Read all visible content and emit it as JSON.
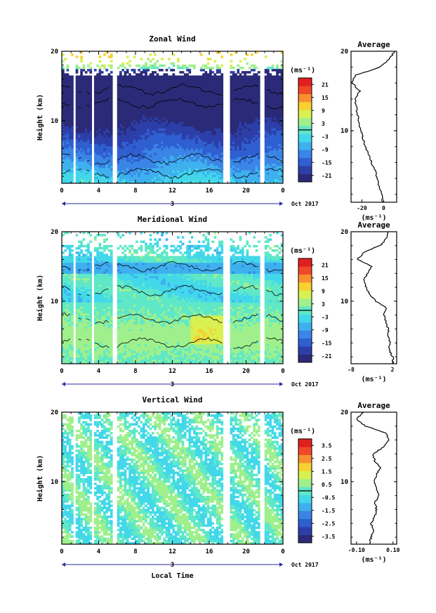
{
  "figure": {
    "xlabel": "Local Time",
    "date_label": "Oct 2017",
    "day_label": "3"
  },
  "colors": {
    "scale": [
      "#2a2a78",
      "#2c3fa8",
      "#2f5fd0",
      "#3a85e6",
      "#3fb0ee",
      "#42d8ea",
      "#5fe8c8",
      "#9ff08c",
      "#d8f050",
      "#f8d030",
      "#f89030",
      "#f04828",
      "#e02020"
    ]
  },
  "chart_data": [
    {
      "type": "heatmap",
      "title": "Zonal Wind",
      "ylabel": "Height (km)",
      "xlim": [
        0,
        24
      ],
      "ylim": [
        1,
        20
      ],
      "xticks": [
        "0",
        "4",
        "8",
        "12",
        "16",
        "20",
        "0"
      ],
      "yticks": [
        "10",
        "20"
      ],
      "colorbar": {
        "unit": "(ms⁻¹)",
        "ticks": [
          "21",
          "15",
          "9",
          "3",
          "-3",
          "-9",
          "-15",
          "-21"
        ],
        "range": [
          -24,
          24
        ]
      },
      "profile": {
        "title": "Average",
        "xlabel": "(ms⁻¹)",
        "xticks": [
          "-20",
          "0"
        ],
        "xlim": [
          -30,
          12
        ],
        "yticks": [
          "10",
          "20"
        ],
        "heights": [
          1,
          2,
          3,
          4,
          5,
          6,
          7,
          8,
          9,
          10,
          11,
          12,
          13,
          14,
          15,
          16,
          17,
          18,
          19,
          20
        ],
        "values": [
          -1,
          -2,
          -4,
          -6,
          -8,
          -11,
          -14,
          -17,
          -19,
          -21,
          -23,
          -24,
          -25,
          -27,
          -22,
          -29,
          -26,
          -3,
          5,
          10
        ]
      }
    },
    {
      "type": "heatmap",
      "title": "Meridional Wind",
      "ylabel": "Height (km)",
      "xlim": [
        0,
        24
      ],
      "ylim": [
        1,
        20
      ],
      "xticks": [
        "0",
        "4",
        "8",
        "12",
        "16",
        "20",
        "0"
      ],
      "yticks": [
        "10",
        "20"
      ],
      "colorbar": {
        "unit": "(ms⁻¹)",
        "ticks": [
          "21",
          "15",
          "9",
          "3",
          "-3",
          "-9",
          "-15",
          "-21"
        ],
        "range": [
          -24,
          24
        ]
      },
      "profile": {
        "title": "Average",
        "xlabel": "(ms⁻¹)",
        "xticks": [
          "-8",
          "2"
        ],
        "xlim": [
          -8,
          3
        ],
        "yticks": [
          "10",
          "20"
        ],
        "heights": [
          1,
          2,
          3,
          4,
          5,
          6,
          7,
          8,
          9,
          10,
          11,
          12,
          13,
          14,
          15,
          16,
          17,
          18,
          19,
          20
        ],
        "values": [
          2.2,
          2.0,
          1.2,
          1.5,
          0.8,
          1.0,
          0.4,
          0.0,
          0.5,
          -2,
          -3.5,
          -4.5,
          -5,
          -4,
          -3,
          -6.5,
          -5,
          -1,
          0.5,
          1
        ]
      }
    },
    {
      "type": "heatmap",
      "title": "Vertical Wind",
      "ylabel": "Height (km)",
      "xlim": [
        0,
        24
      ],
      "ylim": [
        1,
        20
      ],
      "xticks": [
        "0",
        "4",
        "8",
        "12",
        "16",
        "20",
        "0"
      ],
      "yticks": [
        "10",
        "20"
      ],
      "colorbar": {
        "unit": "(ms⁻¹)",
        "ticks": [
          "3.5",
          "2.5",
          "1.5",
          "0.5",
          "-0.5",
          "-1.5",
          "-2.5",
          "-3.5"
        ],
        "range": [
          -4,
          4
        ]
      },
      "profile": {
        "title": "Average",
        "xlabel": "(ms⁻¹)",
        "xticks": [
          "-0.10",
          "0.10"
        ],
        "xlim": [
          -0.13,
          0.12
        ],
        "yticks": [
          "10",
          "20"
        ],
        "heights": [
          1,
          2,
          3,
          4,
          5,
          6,
          7,
          8,
          9,
          10,
          11,
          12,
          13,
          14,
          15,
          16,
          17,
          18,
          19,
          20
        ],
        "values": [
          -0.03,
          -0.02,
          -0.01,
          -0.02,
          0.0,
          0.01,
          0.0,
          0.02,
          0.01,
          0.0,
          0.01,
          0.03,
          0.0,
          -0.01,
          0.05,
          0.08,
          0.06,
          -0.05,
          -0.1,
          -0.06
        ]
      }
    }
  ]
}
